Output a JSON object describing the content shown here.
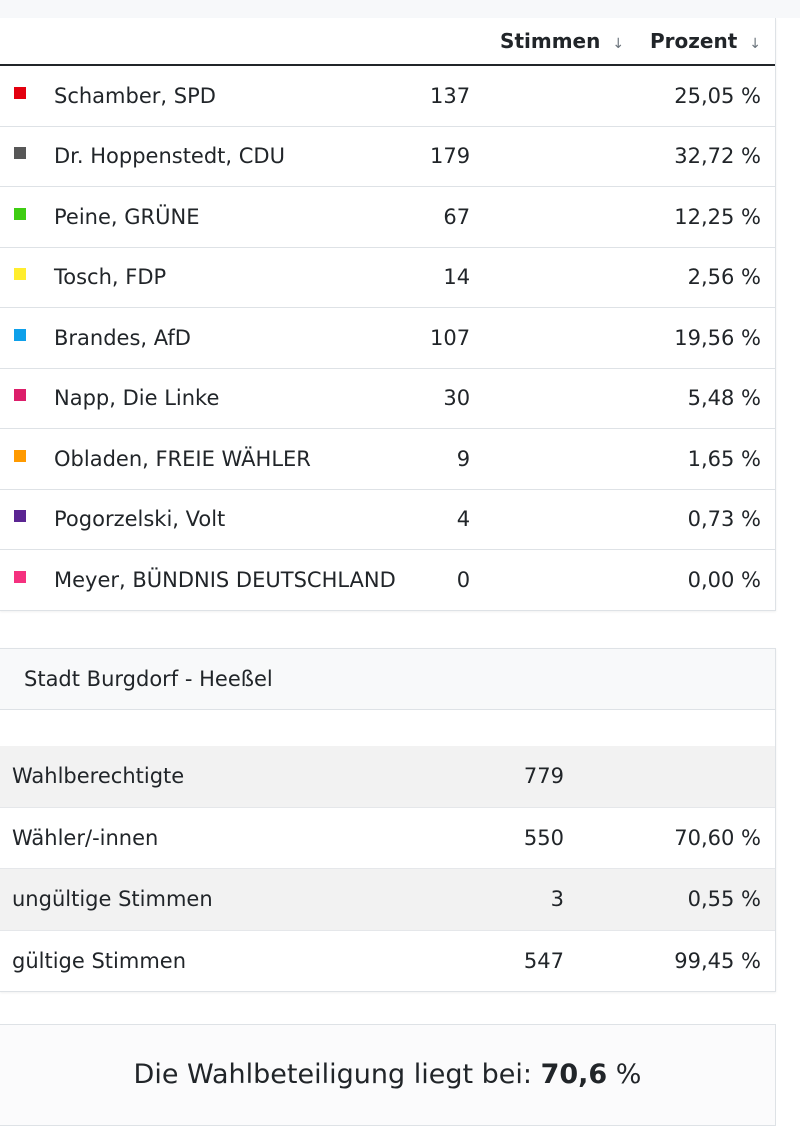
{
  "results_table": {
    "columns": {
      "name": "",
      "votes": "Stimmen",
      "percent": "Prozent",
      "sort_icon": "↓"
    },
    "rows": [
      {
        "candidate": "Schamber, SPD",
        "color": "#e3000f",
        "votes": "137",
        "percent": "25,05 %"
      },
      {
        "candidate": "Dr. Hoppenstedt, CDU",
        "color": "#575757",
        "votes": "179",
        "percent": "32,72 %"
      },
      {
        "candidate": "Peine, GRÜNE",
        "color": "#3ecd12",
        "votes": "67",
        "percent": "12,25 %"
      },
      {
        "candidate": "Tosch, FDP",
        "color": "#ffed2e",
        "votes": "14",
        "percent": "2,56 %"
      },
      {
        "candidate": "Brandes, AfD",
        "color": "#0ea0ea",
        "votes": "107",
        "percent": "19,56 %"
      },
      {
        "candidate": "Napp, Die Linke",
        "color": "#dc1e6a",
        "votes": "30",
        "percent": "5,48 %"
      },
      {
        "candidate": "Obladen, FREIE WÄHLER",
        "color": "#ff9a00",
        "votes": "9",
        "percent": "1,65 %"
      },
      {
        "candidate": "Pogorzelski, Volt",
        "color": "#5b2592",
        "votes": "4",
        "percent": "0,73 %"
      },
      {
        "candidate": "Meyer, BÜNDNIS DEUTSCHLAND",
        "color": "#f5317f",
        "votes": "0",
        "percent": "0,00 %"
      }
    ]
  },
  "district": {
    "title": "Stadt Burgdorf - Heeßel",
    "stats": [
      {
        "label": "Wahlberechtigte",
        "value": "779",
        "percent": ""
      },
      {
        "label": "Wähler/-innen",
        "value": "550",
        "percent": "70,60 %"
      },
      {
        "label": "ungültige Stimmen",
        "value": "3",
        "percent": "0,55 %"
      },
      {
        "label": "gültige Stimmen",
        "value": "547",
        "percent": "99,45 %"
      }
    ]
  },
  "turnout": {
    "prefix": "Die Wahlbeteiligung liegt bei:",
    "value": "70,6",
    "suffix": "%"
  }
}
